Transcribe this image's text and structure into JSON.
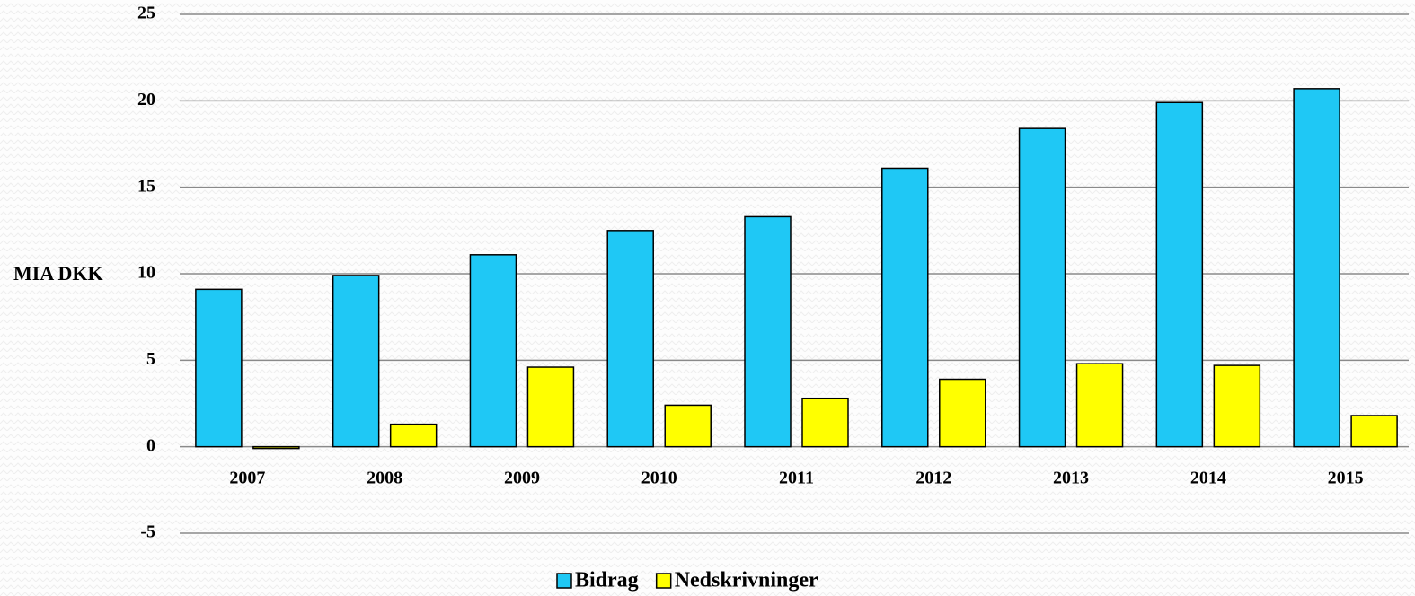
{
  "chart_data": {
    "type": "bar",
    "y_label": "MIA DKK",
    "categories": [
      "2007",
      "2008",
      "2009",
      "2010",
      "2011",
      "2012",
      "2013",
      "2014",
      "2015"
    ],
    "series": [
      {
        "name": "Bidrag",
        "color": "#1fc8f5",
        "values": [
          9.1,
          9.9,
          11.1,
          12.5,
          13.3,
          16.1,
          18.4,
          19.9,
          20.7
        ]
      },
      {
        "name": "Nedskrivninger",
        "color": "#ffff00",
        "values": [
          -0.1,
          1.3,
          4.6,
          2.4,
          2.8,
          3.9,
          4.8,
          4.7,
          1.8
        ]
      }
    ],
    "ylim": [
      -5,
      25
    ],
    "yticks": [
      -5,
      0,
      5,
      10,
      15,
      20,
      25
    ],
    "grid": true,
    "legend": "bottom"
  }
}
